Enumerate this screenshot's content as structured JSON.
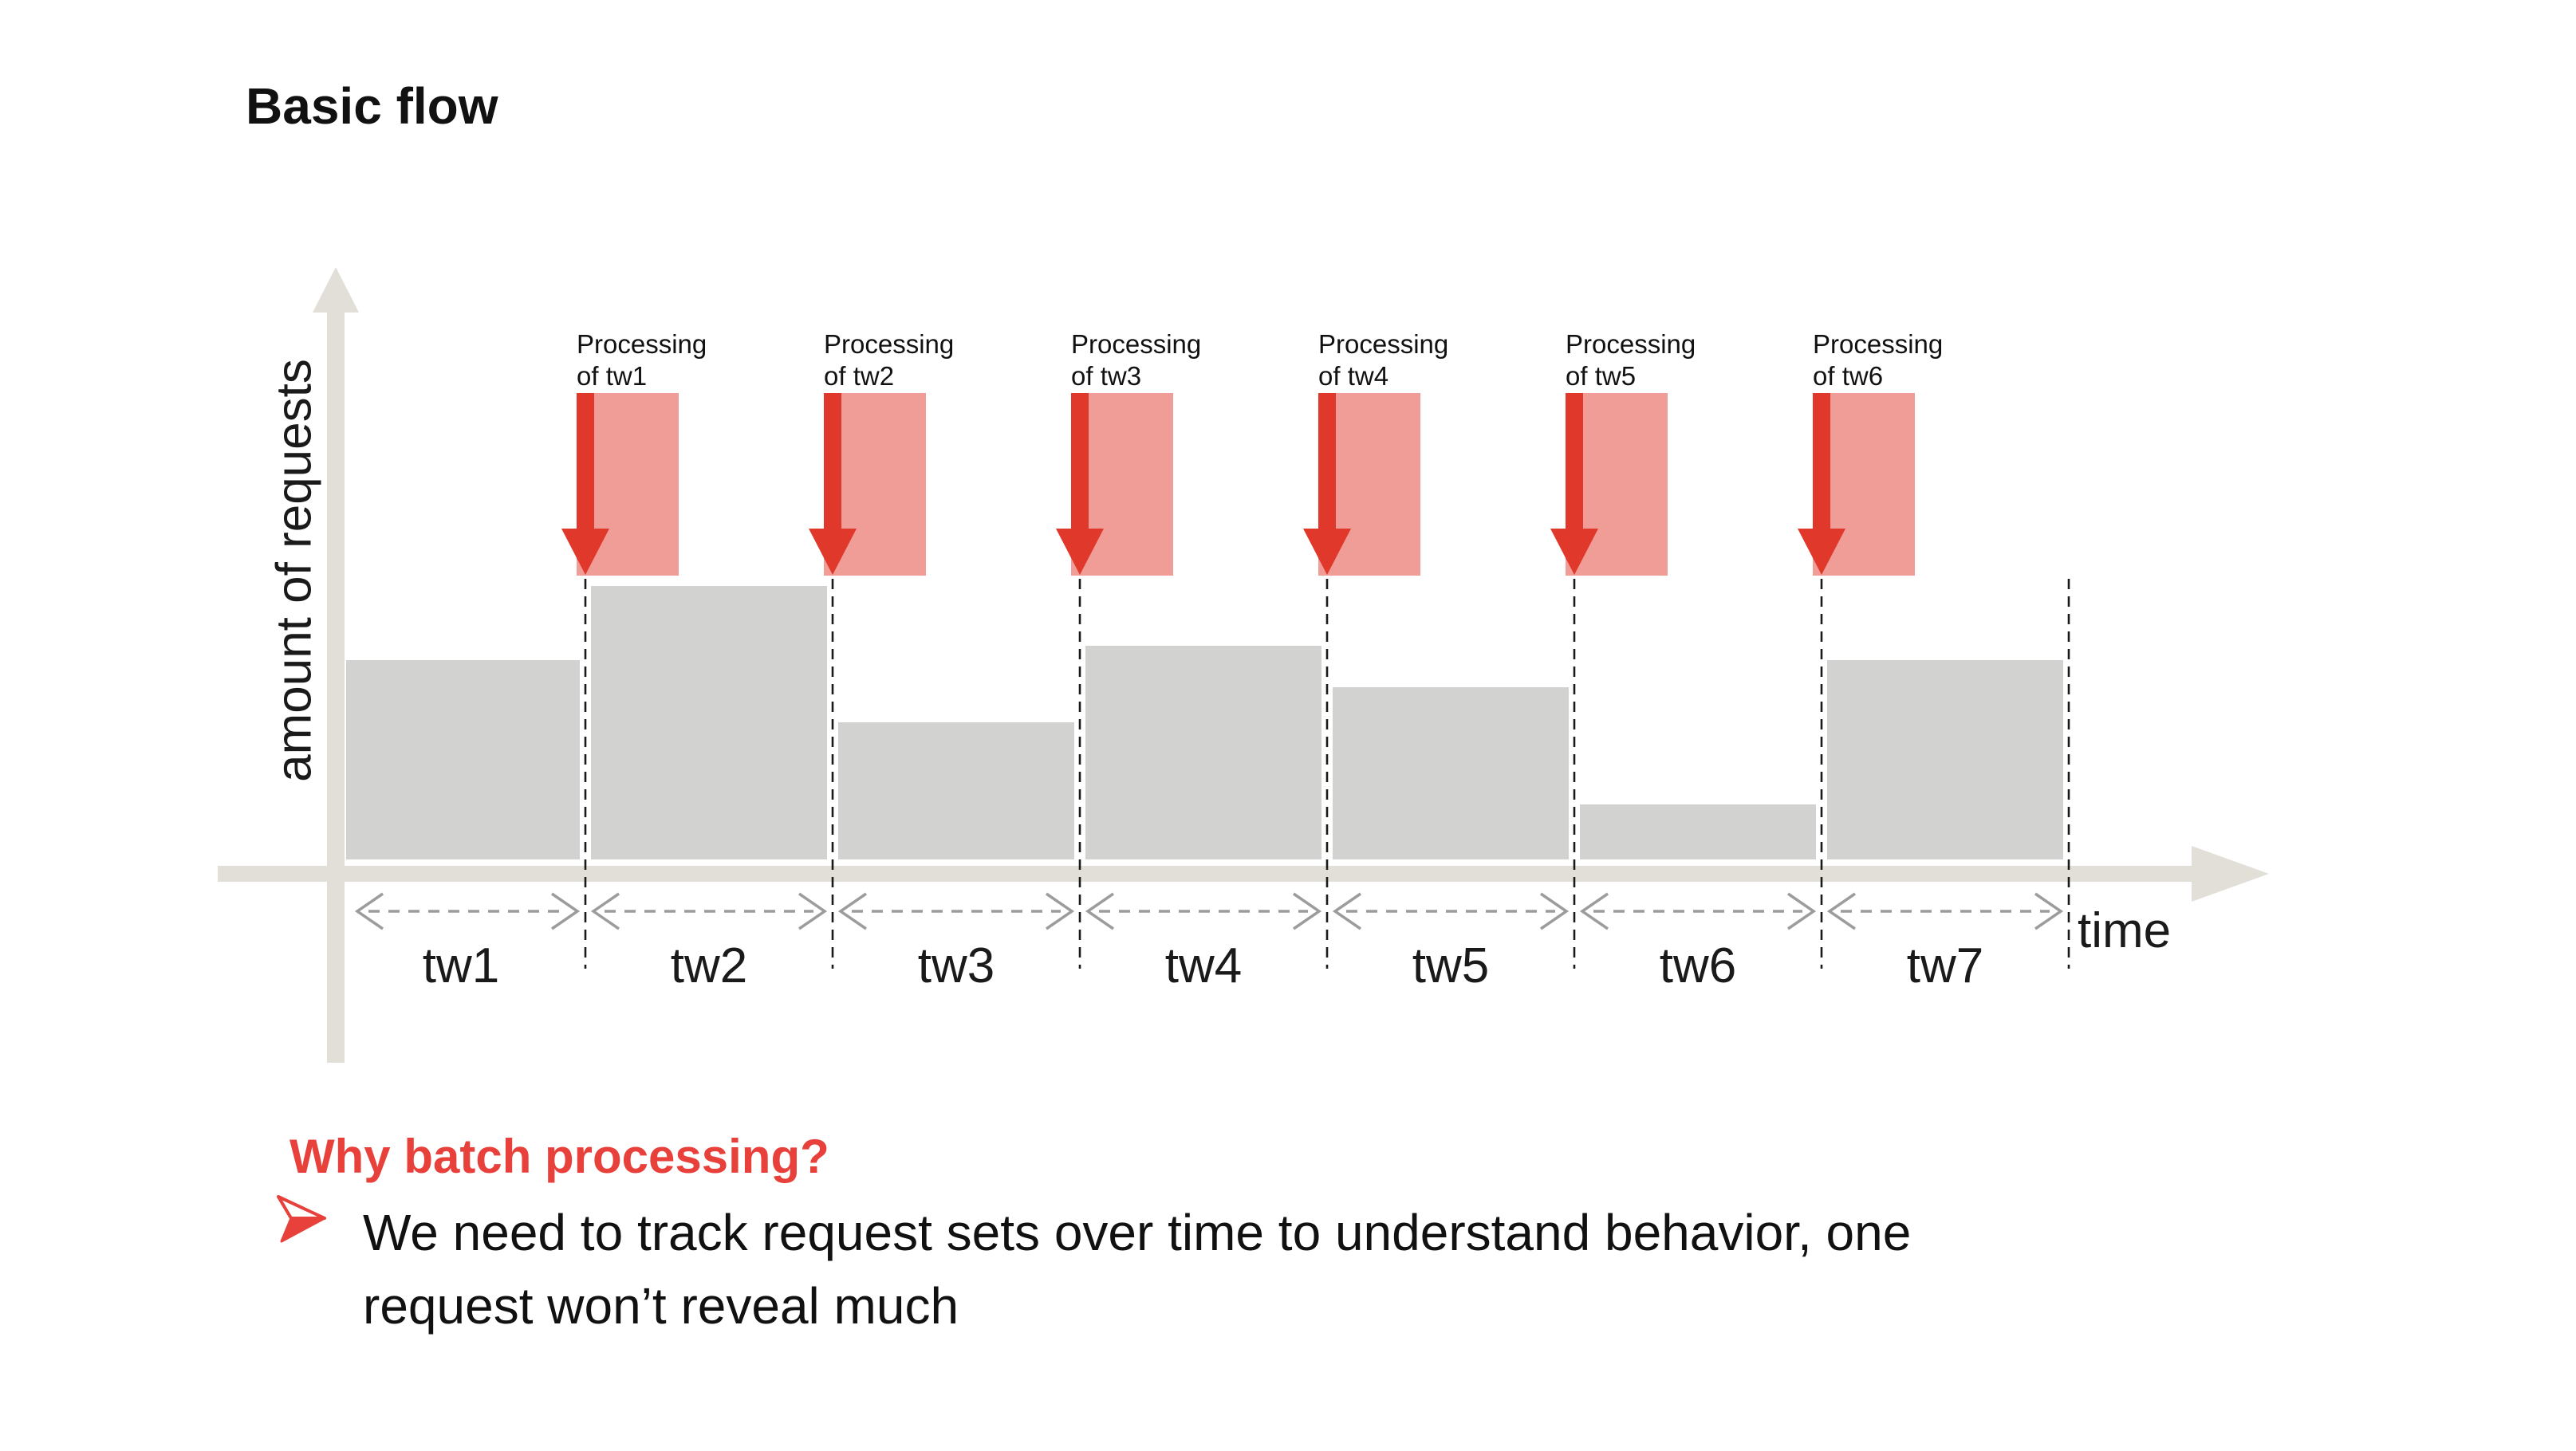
{
  "title": "Basic flow",
  "chart": {
    "y_axis_label": "amount of requests",
    "x_axis_label": "time",
    "processing_labels": [
      {
        "line1": "Processing",
        "line2": "of tw1"
      },
      {
        "line1": "Processing",
        "line2": "of tw2"
      },
      {
        "line1": "Processing",
        "line2": "of tw3"
      },
      {
        "line1": "Processing",
        "line2": "of tw4"
      },
      {
        "line1": "Processing",
        "line2": "of tw5"
      },
      {
        "line1": "Processing",
        "line2": "of tw6"
      }
    ]
  },
  "chart_data": {
    "type": "bar",
    "categories": [
      "tw1",
      "tw2",
      "tw3",
      "tw4",
      "tw5",
      "tw6",
      "tw7"
    ],
    "values": [
      73,
      100,
      50,
      78,
      63,
      20,
      73
    ],
    "title": "Basic flow",
    "xlabel": "time",
    "ylabel": "amount of requests",
    "ylim": [
      0,
      100
    ],
    "grid": false,
    "legend": false,
    "annotations": [
      "Processing of tw1",
      "Processing of tw2",
      "Processing of tw3",
      "Processing of tw4",
      "Processing of tw5",
      "Processing of tw6"
    ]
  },
  "footer": {
    "heading": "Why batch processing?",
    "bullet_lines": [
      "We need to track request sets over time to understand behavior, one",
      "request won’t reveal much"
    ]
  },
  "colors": {
    "bar_gray": "#D2D2D0",
    "axis_gray": "#E1DFD8",
    "processing_red": "#E0382A",
    "processing_pink": "#F09D98",
    "heading_red": "#E8413B",
    "span_arrow_gray": "#9C9C9C",
    "dashed_line": "#1A1A1A"
  }
}
